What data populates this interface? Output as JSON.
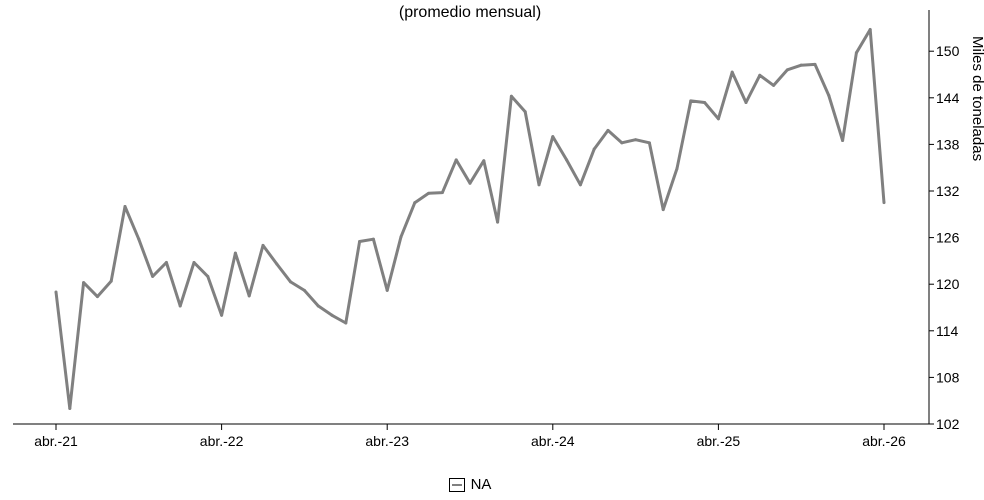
{
  "chart_data": {
    "type": "line",
    "title": "(promedio mensual)",
    "ylabel": "Miles de toneladas",
    "xlabel": "",
    "ylim": [
      102,
      153
    ],
    "y_ticks": [
      102,
      108,
      114,
      120,
      126,
      132,
      138,
      144,
      150
    ],
    "x_tick_labels": [
      "abr.-21",
      "abr.-22",
      "abr.-23",
      "abr.-24",
      "abr.-25",
      "abr.-26"
    ],
    "line_color": "#808080",
    "legend_position": "bottom",
    "series": [
      {
        "name": "NA",
        "values": [
          119.0,
          104.0,
          120.2,
          118.4,
          120.4,
          130.0,
          125.8,
          121.0,
          122.8,
          117.2,
          122.8,
          121.0,
          116.0,
          124.0,
          118.5,
          125.0,
          122.6,
          120.3,
          119.2,
          117.2,
          116.0,
          115.0,
          125.5,
          125.8,
          119.2,
          126.1,
          130.5,
          131.7,
          131.8,
          136.0,
          133.0,
          135.9,
          128.0,
          144.2,
          142.2,
          132.8,
          139.0,
          136.0,
          132.8,
          137.4,
          139.8,
          138.2,
          138.6,
          138.2,
          129.6,
          134.9,
          143.6,
          143.4,
          141.3,
          147.3,
          143.4,
          146.9,
          145.6,
          147.6,
          148.2,
          148.3,
          144.3,
          138.5,
          149.8,
          152.8,
          130.5
        ]
      }
    ]
  }
}
